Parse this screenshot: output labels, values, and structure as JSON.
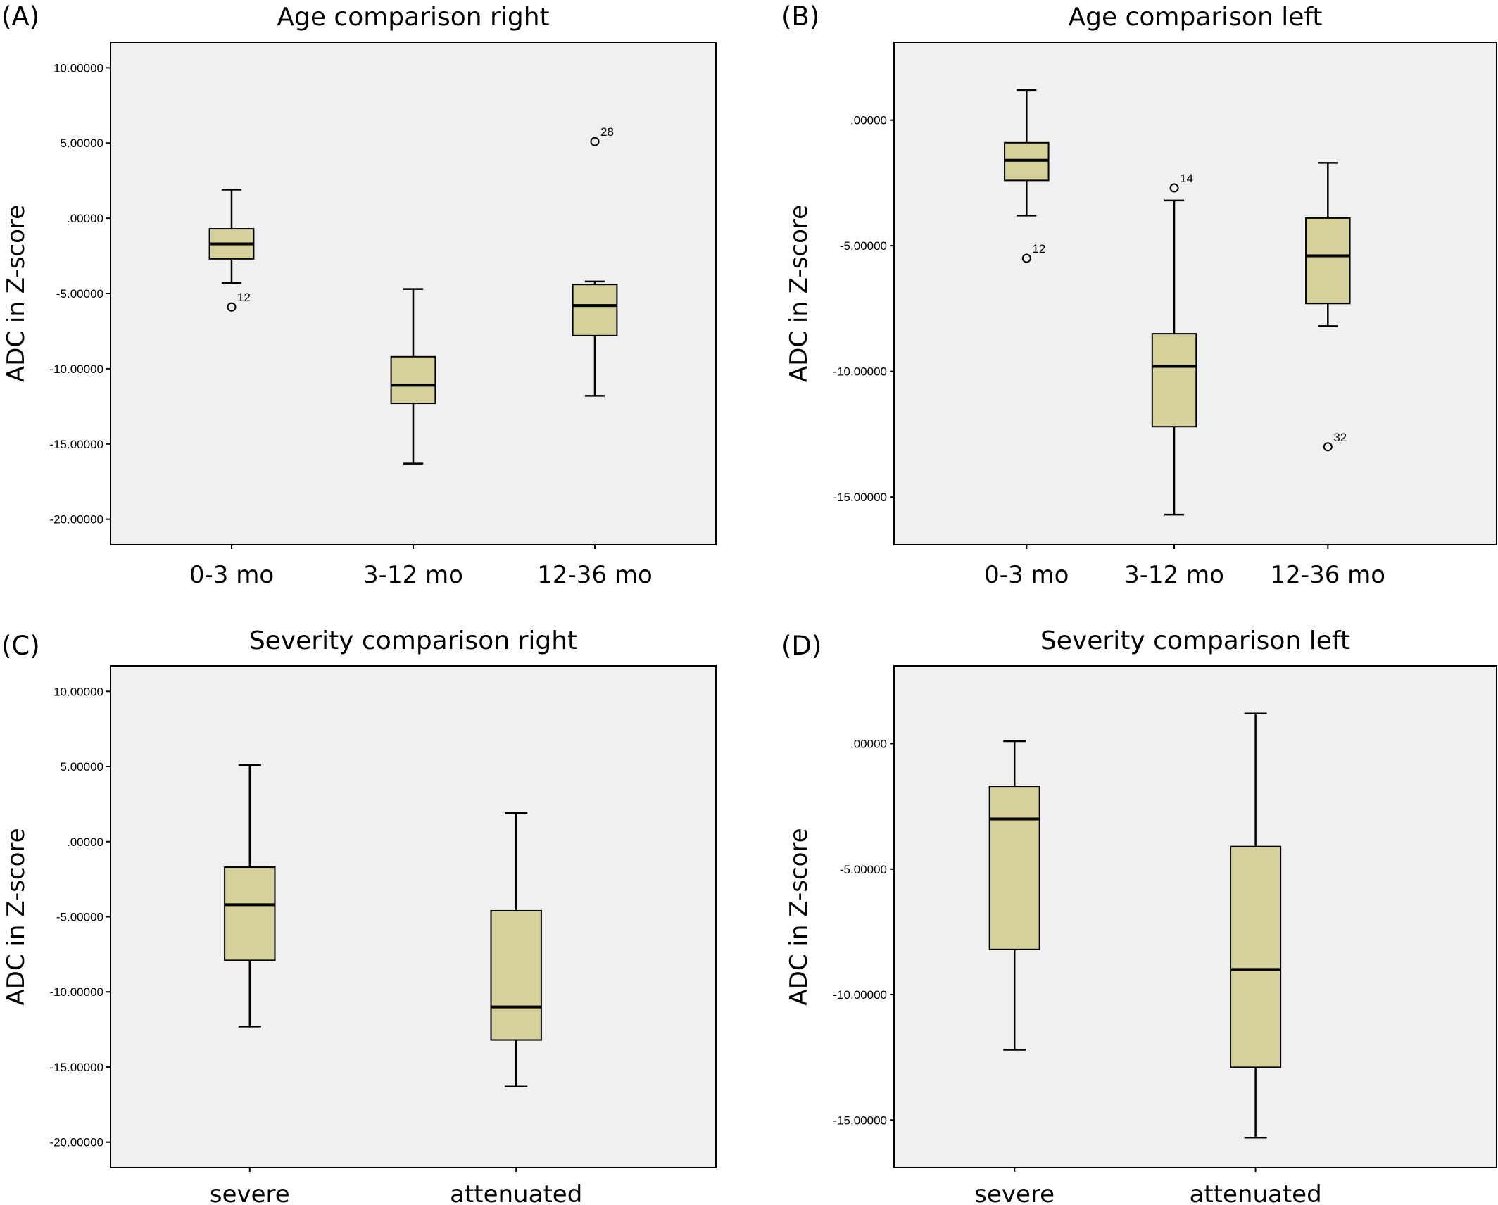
{
  "chart_data": [
    {
      "panel": "(A)",
      "type": "box",
      "title": "Age comparison right",
      "ylabel": "ADC in Z-score",
      "xlabel": "",
      "ylim": [
        -21.7,
        11.7
      ],
      "yticks": [
        10,
        5,
        0,
        -5,
        -10,
        -15,
        -20
      ],
      "ytick_labels": [
        "10.00000",
        "5.00000",
        ".00000",
        "-5.00000",
        "-10.00000",
        "-15.00000",
        "-20.00000"
      ],
      "grid": false,
      "categories": [
        "0-3 mo",
        "3-12 mo",
        "12-36 mo"
      ],
      "boxes": [
        {
          "whisker_low": -4.3,
          "q1": -2.7,
          "median": -1.7,
          "q3": -0.7,
          "whisker_high": 1.9
        },
        {
          "whisker_low": -16.3,
          "q1": -12.3,
          "median": -11.1,
          "q3": -9.2,
          "whisker_high": -4.7
        },
        {
          "whisker_low": -11.8,
          "q1": -7.8,
          "median": -5.8,
          "q3": -4.4,
          "whisker_high": -4.2
        }
      ],
      "outliers": [
        {
          "category": "0-3 mo",
          "value": -5.9,
          "label": "12"
        },
        {
          "category": "12-36 mo",
          "value": 5.1,
          "label": "28"
        }
      ]
    },
    {
      "panel": "(B)",
      "type": "box",
      "title": "Age comparison  left",
      "ylabel": "ADC in Z-score",
      "xlabel": "",
      "ylim": [
        -16.9,
        3.1
      ],
      "yticks": [
        0,
        -5,
        -10,
        -15
      ],
      "ytick_labels": [
        ".00000",
        "-5.00000",
        "-10.00000",
        "-15.00000"
      ],
      "grid": false,
      "categories": [
        "0-3 mo",
        "3-12 mo",
        "12-36 mo"
      ],
      "boxes": [
        {
          "whisker_low": -3.8,
          "q1": -2.4,
          "median": -1.6,
          "q3": -0.9,
          "whisker_high": 1.2
        },
        {
          "whisker_low": -15.7,
          "q1": -12.2,
          "median": -9.8,
          "q3": -8.5,
          "whisker_high": -3.2
        },
        {
          "whisker_low": -8.2,
          "q1": -7.3,
          "median": -5.4,
          "q3": -3.9,
          "whisker_high": -1.7
        }
      ],
      "outliers": [
        {
          "category": "0-3 mo",
          "value": -5.5,
          "label": "12"
        },
        {
          "category": "3-12 mo",
          "value": -2.7,
          "label": "14"
        },
        {
          "category": "12-36 mo",
          "value": -13.0,
          "label": "32"
        }
      ]
    },
    {
      "panel": "(C)",
      "type": "box",
      "title": "Severity comparison right",
      "ylabel": "ADC in Z-score",
      "xlabel": "",
      "ylim": [
        -21.7,
        11.7
      ],
      "yticks": [
        10,
        5,
        0,
        -5,
        -10,
        -15,
        -20
      ],
      "ytick_labels": [
        "10.00000",
        "5.00000",
        ".00000",
        "-5.00000",
        "-10.00000",
        "-15.00000",
        "-20.00000"
      ],
      "grid": false,
      "categories": [
        "severe",
        "attenuated"
      ],
      "boxes": [
        {
          "whisker_low": -12.3,
          "q1": -7.9,
          "median": -4.2,
          "q3": -1.7,
          "whisker_high": 5.1
        },
        {
          "whisker_low": -16.3,
          "q1": -13.2,
          "median": -11.0,
          "q3": -4.6,
          "whisker_high": 1.9
        }
      ],
      "outliers": []
    },
    {
      "panel": "(D)",
      "type": "box",
      "title": "Severity comparison left",
      "ylabel": "ADC in Z-score",
      "xlabel": "",
      "ylim": [
        -16.9,
        3.1
      ],
      "yticks": [
        0,
        -5,
        -10,
        -15
      ],
      "ytick_labels": [
        ".00000",
        "-5.00000",
        "-10.00000",
        "-15.00000"
      ],
      "grid": false,
      "categories": [
        "severe",
        "attenuated"
      ],
      "boxes": [
        {
          "whisker_low": -12.2,
          "q1": -8.2,
          "median": -3.0,
          "q3": -1.7,
          "whisker_high": 0.1
        },
        {
          "whisker_low": -15.7,
          "q1": -12.9,
          "median": -9.0,
          "q3": -4.1,
          "whisker_high": 1.2
        }
      ],
      "outliers": []
    }
  ]
}
